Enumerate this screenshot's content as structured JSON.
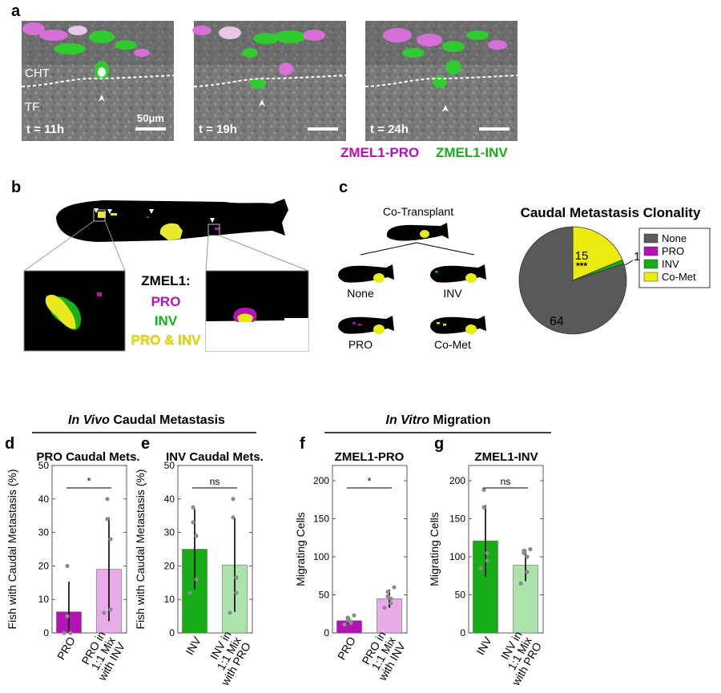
{
  "panel_labels": [
    "a",
    "b",
    "c",
    "d",
    "e",
    "f",
    "g"
  ],
  "panel_a": {
    "frames": [
      {
        "time": "t = 11h"
      },
      {
        "time": "t = 19h"
      },
      {
        "time": "t = 24h"
      }
    ],
    "region_top": "CHT",
    "region_bottom": "TF",
    "scale_bar": "50μm",
    "legend": {
      "pro": "ZMEL1-PRO",
      "inv": "ZMEL1-INV"
    }
  },
  "panel_b": {
    "legend_title": "ZMEL1:",
    "pro": "PRO",
    "inv": "INV",
    "both": "PRO & INV"
  },
  "panel_c": {
    "cotransplant": "Co-Transplant",
    "outcomes": [
      "None",
      "INV",
      "PRO",
      "Co-Met"
    ],
    "title": "Caudal Metastasis Clonality",
    "pie_labels": {
      "none": "64",
      "comet": "15",
      "comet_sig": "***",
      "inv": "1"
    }
  },
  "group_headers": {
    "in": "In Vivo",
    "vivo": " Caudal Metastasis",
    "vitro_in": "In Vitro",
    "vitro": " Migration"
  },
  "colors": {
    "pro": "#b512b5",
    "pro_light": "#e8ace8",
    "inv": "#18ad18",
    "inv_light": "#ace3ac",
    "comet": "#ebeb12",
    "none": "#595959",
    "dots": "#8c8c8c"
  },
  "chart_data": [
    {
      "type": "pie",
      "title": "Caudal Metastasis Clonality",
      "categories": [
        "None",
        "PRO",
        "INV",
        "Co-Met"
      ],
      "values": [
        64,
        0,
        1,
        15
      ],
      "legend": "right"
    },
    {
      "type": "bar",
      "id": "d",
      "title": "PRO Caudal Mets.",
      "ylabel": "Fish with Caudal Metastasis (%)",
      "ylim": [
        0,
        50
      ],
      "yticks": [
        0,
        10,
        20,
        30,
        40,
        50
      ],
      "categories": [
        "PRO",
        "PRO in|1:1 Mix|with INV"
      ],
      "values": [
        6.3,
        19
      ],
      "err": [
        9,
        15.5
      ],
      "points": [
        [
          0,
          0,
          0,
          5,
          20
        ],
        [
          6,
          7,
          28,
          34,
          40
        ]
      ],
      "significance": "*"
    },
    {
      "type": "bar",
      "id": "e",
      "title": "INV Caudal Mets.",
      "ylabel": "Fish with Caudal Metastasis (%)",
      "ylim": [
        0,
        50
      ],
      "yticks": [
        0,
        10,
        20,
        30,
        40,
        50
      ],
      "categories": [
        "INV",
        "INV in|1:1 Mix|with PRO"
      ],
      "values": [
        25,
        20.3
      ],
      "err": [
        12,
        14
      ],
      "points": [
        [
          12,
          16,
          29,
          33,
          37.5
        ],
        [
          6,
          12,
          16.5,
          34.5,
          40
        ]
      ],
      "significance": "ns"
    },
    {
      "type": "bar",
      "id": "f",
      "title": "ZMEL1-PRO",
      "ylabel": "Migrating Cells",
      "ylim": [
        0,
        220
      ],
      "yticks": [
        0,
        50,
        100,
        150,
        200
      ],
      "categories": [
        "PRO",
        "PRO in|1:1 Mix|with INV"
      ],
      "values": [
        16,
        45
      ],
      "err": [
        5,
        12
      ],
      "points": [
        [
          11,
          13,
          15,
          17,
          20,
          23
        ],
        [
          33,
          39,
          45,
          48,
          54,
          60
        ]
      ],
      "significance": "*"
    },
    {
      "type": "bar",
      "id": "g",
      "title": "ZMEL1-INV",
      "ylabel": "Migrating Cells",
      "ylim": [
        0,
        220
      ],
      "yticks": [
        0,
        50,
        100,
        150,
        200
      ],
      "categories": [
        "INV",
        "INV in|1:1 Mix|with PRO"
      ],
      "values": [
        121,
        89
      ],
      "err": [
        47,
        21
      ],
      "points": [
        [
          85,
          95,
          105,
          165,
          188
        ],
        [
          65,
          80,
          100,
          105,
          108,
          110
        ]
      ],
      "significance": "ns"
    }
  ]
}
